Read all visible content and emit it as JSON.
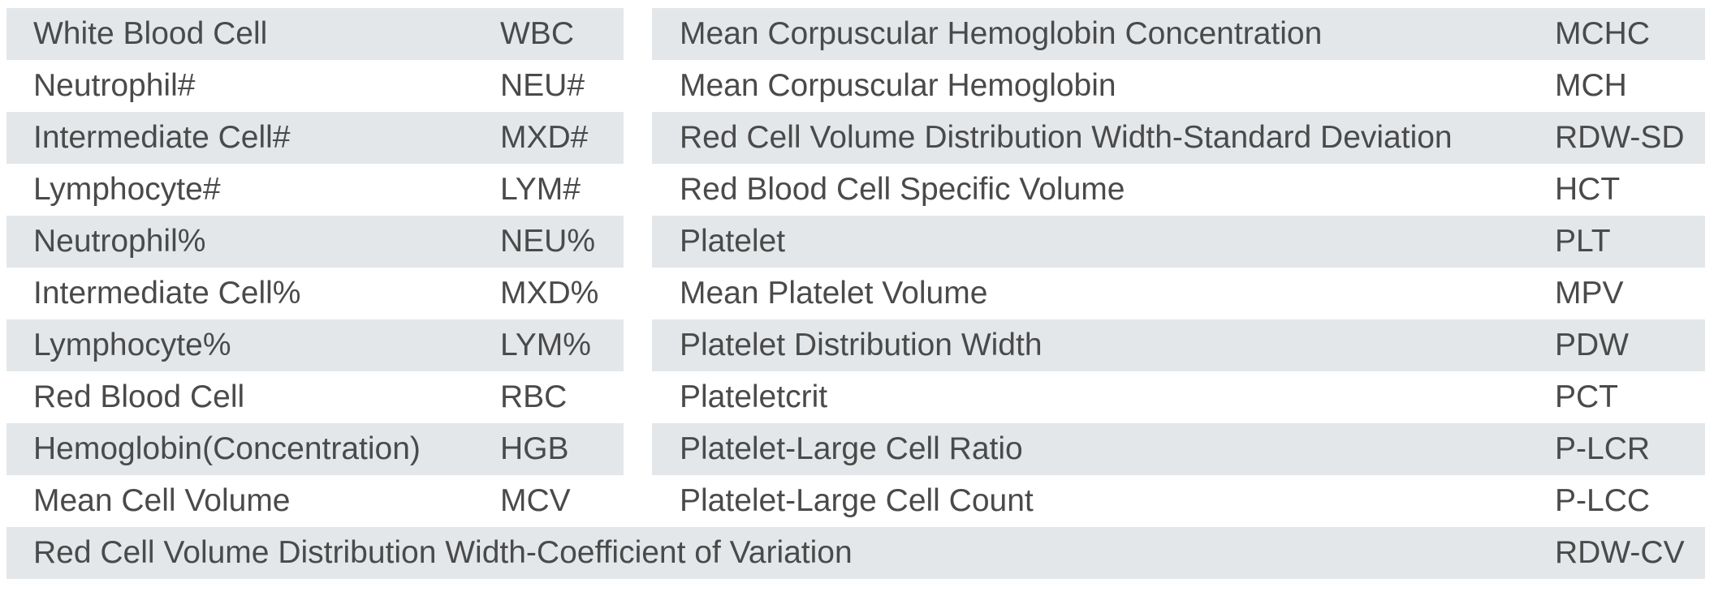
{
  "rows": [
    {
      "left_name": "White Blood Cell",
      "left_abbr": "WBC",
      "right_name": "Mean Corpuscular Hemoglobin Concentration",
      "right_abbr": "MCHC",
      "shaded": true
    },
    {
      "left_name": "Neutrophil#",
      "left_abbr": "NEU#",
      "right_name": "Mean Corpuscular Hemoglobin",
      "right_abbr": "MCH",
      "shaded": false
    },
    {
      "left_name": "Intermediate Cell#",
      "left_abbr": "MXD#",
      "right_name": "Red Cell Volume Distribution Width-Standard Deviation",
      "right_abbr": "RDW-SD",
      "shaded": true
    },
    {
      "left_name": "Lymphocyte#",
      "left_abbr": "LYM#",
      "right_name": "Red Blood Cell Specific Volume",
      "right_abbr": "HCT",
      "shaded": false
    },
    {
      "left_name": "Neutrophil%",
      "left_abbr": "NEU%",
      "right_name": "Platelet",
      "right_abbr": "PLT",
      "shaded": true
    },
    {
      "left_name": "Intermediate Cell%",
      "left_abbr": "MXD%",
      "right_name": "Mean Platelet Volume",
      "right_abbr": "MPV",
      "shaded": false
    },
    {
      "left_name": "Lymphocyte%",
      "left_abbr": "LYM%",
      "right_name": "Platelet Distribution Width",
      "right_abbr": "PDW",
      "shaded": true
    },
    {
      "left_name": "Red Blood Cell",
      "left_abbr": "RBC",
      "right_name": "Plateletcrit",
      "right_abbr": "PCT",
      "shaded": false
    },
    {
      "left_name": "Hemoglobin(Concentration)",
      "left_abbr": "HGB",
      "right_name": "Platelet-Large Cell Ratio",
      "right_abbr": "P-LCR",
      "shaded": true
    },
    {
      "left_name": "Mean Cell Volume",
      "left_abbr": "MCV",
      "right_name": "Platelet-Large Cell Count",
      "right_abbr": "P-LCC",
      "shaded": false
    }
  ],
  "last_row": {
    "name": "Red Cell Volume Distribution Width-Coefficient of Variation",
    "abbr": "RDW-CV"
  },
  "colors": {
    "row_shade": "#e3e7ea",
    "text": "#4a4a4a",
    "background": "#ffffff"
  }
}
